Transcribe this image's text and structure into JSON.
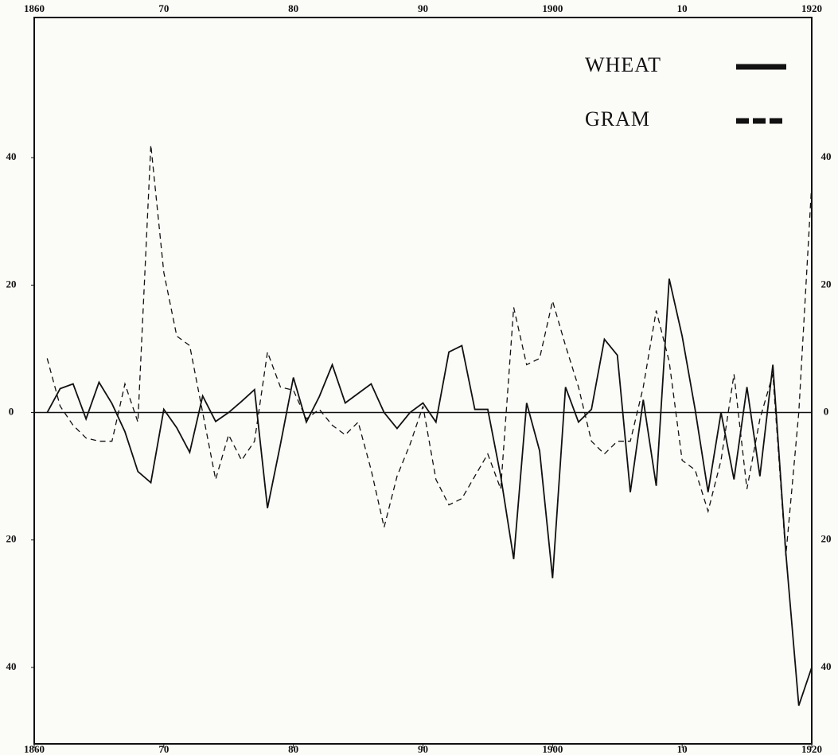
{
  "chart_data": {
    "type": "line",
    "x": [
      1861,
      1862,
      1863,
      1864,
      1865,
      1866,
      1867,
      1868,
      1869,
      1870,
      1871,
      1872,
      1873,
      1874,
      1875,
      1876,
      1877,
      1878,
      1879,
      1880,
      1881,
      1882,
      1883,
      1884,
      1885,
      1886,
      1887,
      1888,
      1889,
      1890,
      1891,
      1892,
      1893,
      1894,
      1895,
      1896,
      1897,
      1898,
      1899,
      1900,
      1901,
      1902,
      1903,
      1904,
      1905,
      1906,
      1907,
      1908,
      1909,
      1910,
      1911,
      1912,
      1913,
      1914,
      1915,
      1916,
      1917,
      1918,
      1919,
      1920
    ],
    "series": [
      {
        "name": "WHEAT",
        "color": "#111111",
        "dash": "solid",
        "values": [
          0,
          3.75,
          4.5,
          -1,
          4.75,
          1.4,
          -3,
          -9.25,
          -11,
          0.5,
          -2.4,
          -6.25,
          2.6,
          -1.4,
          0,
          1.75,
          3.6,
          -15,
          -5,
          5.5,
          -1.5,
          2.5,
          7.5,
          1.5,
          3,
          4.5,
          0,
          -2.5,
          0,
          1.5,
          -1.5,
          9.5,
          10.5,
          0.5,
          0.5,
          -10,
          -23,
          1.5,
          -6,
          -26,
          4,
          -1.5,
          0.5,
          11.5,
          9,
          -12.5,
          2,
          -11.5,
          21,
          12,
          0.5,
          -12.5,
          0,
          -10.5,
          4,
          -10,
          7.5,
          -22,
          -46,
          -40
        ]
      },
      {
        "name": "GRAM",
        "color": "#111111",
        "dash": "dashed",
        "values": [
          8.5,
          1,
          -2,
          -4,
          -4.5,
          -4.5,
          4.5,
          -1.5,
          42,
          22,
          12,
          10.5,
          0,
          -10.5,
          -3.5,
          -7.5,
          -4.5,
          9.5,
          4,
          3.5,
          -1,
          0.5,
          -2,
          -3.5,
          -1.5,
          -9,
          -18,
          -10,
          -5,
          1,
          -10.5,
          -14.5,
          -13.5,
          -10,
          -6.5,
          -12,
          16.5,
          7.5,
          8.5,
          17.5,
          10.5,
          4,
          -4.5,
          -6.5,
          -4.5,
          -4.5,
          4,
          16,
          8,
          -7.5,
          -9,
          -15.5,
          -7.5,
          6,
          -12,
          -1,
          6,
          -22.5,
          0,
          36
        ]
      }
    ],
    "xlim": [
      1860,
      1920
    ],
    "xticks": [
      1860,
      {
        "value": 1870,
        "label": "70"
      },
      {
        "value": 1880,
        "label": "80"
      },
      {
        "value": 1890,
        "label": "90"
      },
      1900,
      {
        "value": 1910,
        "label": "10"
      },
      1920
    ],
    "ylim": [
      -52,
      62
    ],
    "yticks": [
      {
        "value": -40,
        "label": "40"
      },
      {
        "value": -20,
        "label": "20"
      },
      0,
      20,
      40
    ]
  }
}
